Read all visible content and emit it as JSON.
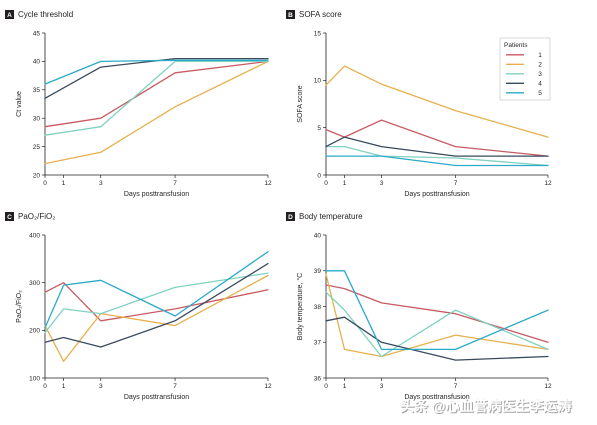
{
  "colors": {
    "1": "#c85a62",
    "2": "#e6b04e",
    "3": "#7fd1c2",
    "4": "#3a4a5e",
    "5": "#2aa9c8"
  },
  "legend": {
    "title": "Patients",
    "entries": [
      "1",
      "2",
      "3",
      "4",
      "5"
    ]
  },
  "watermark": "头条 @心血管病医生李运涛",
  "chart_data": [
    {
      "type": "line",
      "letter": "A",
      "title": "Cycle threshold",
      "xlabel": "Days posttransfusion",
      "ylabel": "Ct value",
      "xlim": [
        0,
        12
      ],
      "ylim": [
        20,
        45
      ],
      "xticks": [
        0,
        1,
        3,
        7,
        12
      ],
      "yticks": [
        20,
        25,
        30,
        35,
        40,
        45
      ],
      "series": [
        {
          "id": "1",
          "x": [
            0,
            3,
            7,
            12
          ],
          "y": [
            28.5,
            30,
            38,
            40
          ]
        },
        {
          "id": "2",
          "x": [
            0,
            3,
            7,
            12
          ],
          "y": [
            22,
            24,
            32,
            40
          ]
        },
        {
          "id": "3",
          "x": [
            0,
            3,
            7,
            12
          ],
          "y": [
            27,
            28.5,
            40,
            40
          ]
        },
        {
          "id": "4",
          "x": [
            0,
            3,
            7,
            12
          ],
          "y": [
            33.5,
            39,
            40.5,
            40.5
          ]
        },
        {
          "id": "5",
          "x": [
            0,
            3,
            7,
            12
          ],
          "y": [
            36,
            40,
            40.2,
            40.2
          ]
        }
      ]
    },
    {
      "type": "line",
      "letter": "B",
      "title": "SOFA score",
      "xlabel": "Days posttransfusion",
      "ylabel": "SOFA score",
      "xlim": [
        0,
        12
      ],
      "ylim": [
        0,
        15
      ],
      "xticks": [
        0,
        1,
        3,
        7,
        12
      ],
      "yticks": [
        0,
        5,
        10,
        15
      ],
      "legend": true,
      "series": [
        {
          "id": "1",
          "x": [
            0,
            1,
            3,
            7,
            12
          ],
          "y": [
            4.8,
            4,
            5.8,
            3,
            2
          ]
        },
        {
          "id": "2",
          "x": [
            0,
            1,
            3,
            7,
            12
          ],
          "y": [
            9.5,
            11.5,
            9.6,
            6.8,
            4
          ]
        },
        {
          "id": "3",
          "x": [
            0,
            1,
            3,
            7,
            12
          ],
          "y": [
            3,
            3,
            2,
            1.8,
            1
          ]
        },
        {
          "id": "4",
          "x": [
            0,
            1,
            3,
            7,
            12
          ],
          "y": [
            3,
            4,
            3,
            2,
            2
          ]
        },
        {
          "id": "5",
          "x": [
            0,
            1,
            3,
            7,
            12
          ],
          "y": [
            2,
            2,
            2,
            1,
            1
          ]
        }
      ]
    },
    {
      "type": "line",
      "letter": "C",
      "title": "PaO₂/FiO₂",
      "xlabel": "Days posttransfusion",
      "ylabel": "PaO₂/FiO₂",
      "xlim": [
        0,
        12
      ],
      "ylim": [
        100,
        400
      ],
      "xticks": [
        0,
        1,
        3,
        7,
        12
      ],
      "yticks": [
        100,
        200,
        300,
        400
      ],
      "series": [
        {
          "id": "1",
          "x": [
            0,
            1,
            3,
            7,
            12
          ],
          "y": [
            280,
            300,
            220,
            245,
            285
          ]
        },
        {
          "id": "2",
          "x": [
            0,
            1,
            3,
            7,
            12
          ],
          "y": [
            210,
            135,
            235,
            210,
            315
          ]
        },
        {
          "id": "3",
          "x": [
            0,
            1,
            3,
            7,
            12
          ],
          "y": [
            195,
            245,
            235,
            290,
            320
          ]
        },
        {
          "id": "4",
          "x": [
            0,
            1,
            3,
            7,
            12
          ],
          "y": [
            175,
            185,
            165,
            220,
            340
          ]
        },
        {
          "id": "5",
          "x": [
            0,
            1,
            3,
            7,
            12
          ],
          "y": [
            205,
            295,
            305,
            230,
            365
          ]
        }
      ]
    },
    {
      "type": "line",
      "letter": "D",
      "title": "Body temperature",
      "xlabel": "Days posttransfusion",
      "ylabel": "Body temperature, °C",
      "xlim": [
        0,
        12
      ],
      "ylim": [
        36,
        40
      ],
      "xticks": [
        0,
        1,
        3,
        7,
        12
      ],
      "yticks": [
        36,
        37,
        38,
        39,
        40
      ],
      "series": [
        {
          "id": "1",
          "x": [
            0,
            1,
            3,
            7,
            12
          ],
          "y": [
            38.6,
            38.5,
            38.1,
            37.8,
            37
          ],
          "dashed": false
        },
        {
          "id": "2",
          "x": [
            0,
            1,
            3,
            7,
            12
          ],
          "y": [
            38.9,
            36.8,
            36.6,
            37.2,
            36.8
          ]
        },
        {
          "id": "3",
          "x": [
            0,
            1,
            3,
            7,
            12
          ],
          "y": [
            38.4,
            37.9,
            36.6,
            37.9,
            36.8
          ]
        },
        {
          "id": "4",
          "x": [
            0,
            1,
            3,
            7,
            12
          ],
          "y": [
            37.6,
            37.7,
            37,
            36.5,
            36.6
          ]
        },
        {
          "id": "5",
          "x": [
            0,
            1,
            3,
            7,
            12
          ],
          "y": [
            39,
            39,
            36.8,
            36.8,
            37.9
          ]
        }
      ]
    }
  ]
}
